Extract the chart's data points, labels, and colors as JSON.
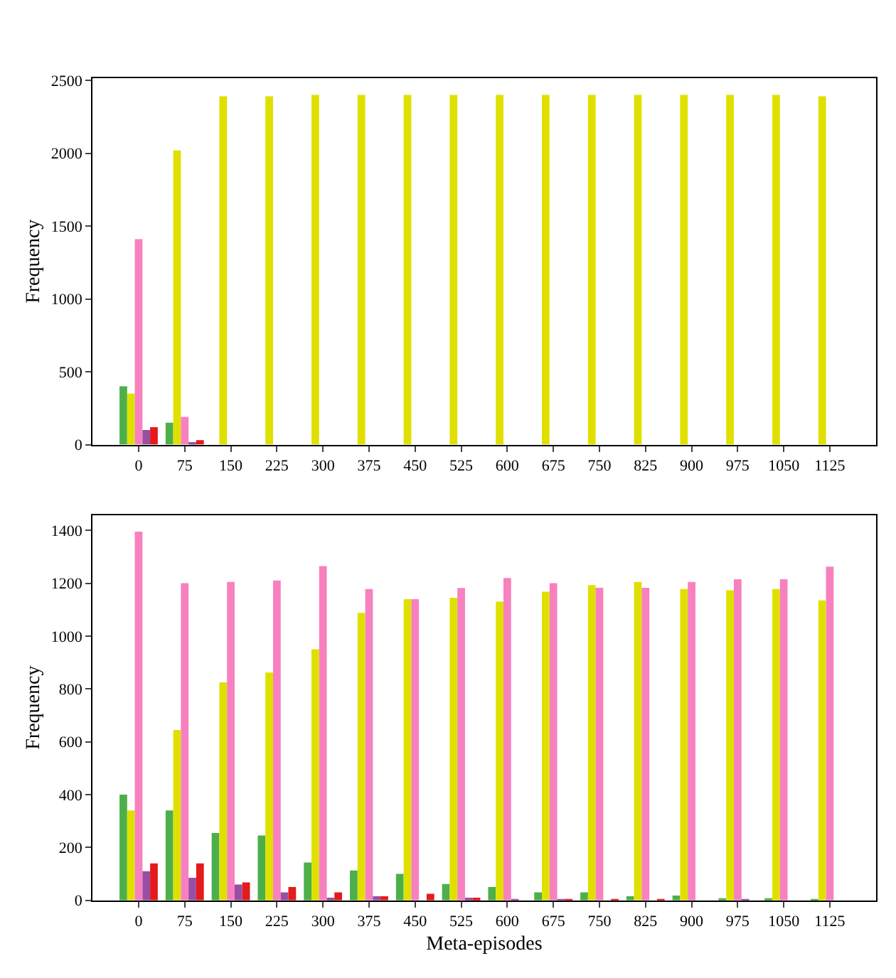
{
  "chart_data": [
    {
      "type": "bar",
      "ylabel": "Frequency",
      "categories": [
        "0",
        "75",
        "150",
        "225",
        "300",
        "375",
        "450",
        "525",
        "600",
        "675",
        "750",
        "825",
        "900",
        "975",
        "1050",
        "1125"
      ],
      "ylim": [
        0,
        2515
      ],
      "yticks": [
        0,
        500,
        1000,
        1500,
        2000,
        2500
      ],
      "series": [
        {
          "color": "#4daf4a",
          "values": [
            400,
            150,
            0,
            0,
            0,
            0,
            0,
            0,
            0,
            0,
            0,
            0,
            0,
            0,
            0,
            0
          ]
        },
        {
          "color": "#e0e000",
          "values": [
            350,
            2020,
            2390,
            2390,
            2400,
            2400,
            2400,
            2400,
            2400,
            2400,
            2400,
            2400,
            2400,
            2400,
            2400,
            2390
          ]
        },
        {
          "color": "#f781bf",
          "values": [
            1410,
            190,
            0,
            0,
            0,
            0,
            0,
            0,
            0,
            0,
            0,
            0,
            0,
            0,
            0,
            0
          ]
        },
        {
          "color": "#984ea3",
          "values": [
            100,
            10,
            0,
            0,
            0,
            0,
            0,
            0,
            0,
            0,
            0,
            0,
            0,
            0,
            0,
            0
          ]
        },
        {
          "color": "#e41a1c",
          "values": [
            120,
            30,
            0,
            0,
            0,
            0,
            0,
            0,
            0,
            0,
            0,
            0,
            0,
            0,
            0,
            0
          ]
        }
      ]
    },
    {
      "type": "bar",
      "xlabel": "Meta-episodes",
      "ylabel": "Frequency",
      "categories": [
        "0",
        "75",
        "150",
        "225",
        "300",
        "375",
        "450",
        "525",
        "600",
        "675",
        "750",
        "825",
        "900",
        "975",
        "1050",
        "1125"
      ],
      "ylim": [
        0,
        1458
      ],
      "yticks": [
        0,
        200,
        400,
        600,
        800,
        1000,
        1200,
        1400
      ],
      "series": [
        {
          "color": "#4daf4a",
          "values": [
            400,
            340,
            255,
            245,
            143,
            113,
            100,
            62,
            50,
            30,
            30,
            15,
            18,
            8,
            8,
            5
          ]
        },
        {
          "color": "#e0e000",
          "values": [
            340,
            645,
            825,
            862,
            950,
            1088,
            1140,
            1145,
            1130,
            1168,
            1193,
            1205,
            1178,
            1173,
            1178,
            1135
          ]
        },
        {
          "color": "#f781bf",
          "values": [
            1395,
            1200,
            1205,
            1210,
            1265,
            1178,
            1140,
            1182,
            1220,
            1200,
            1183,
            1183,
            1205,
            1215,
            1215,
            1263
          ]
        },
        {
          "color": "#984ea3",
          "values": [
            110,
            85,
            60,
            30,
            10,
            15,
            0,
            10,
            5,
            5,
            0,
            0,
            0,
            3,
            0,
            0
          ]
        },
        {
          "color": "#e41a1c",
          "values": [
            140,
            140,
            68,
            50,
            30,
            15,
            25,
            10,
            0,
            5,
            5,
            5,
            0,
            0,
            0,
            0
          ]
        }
      ]
    }
  ]
}
